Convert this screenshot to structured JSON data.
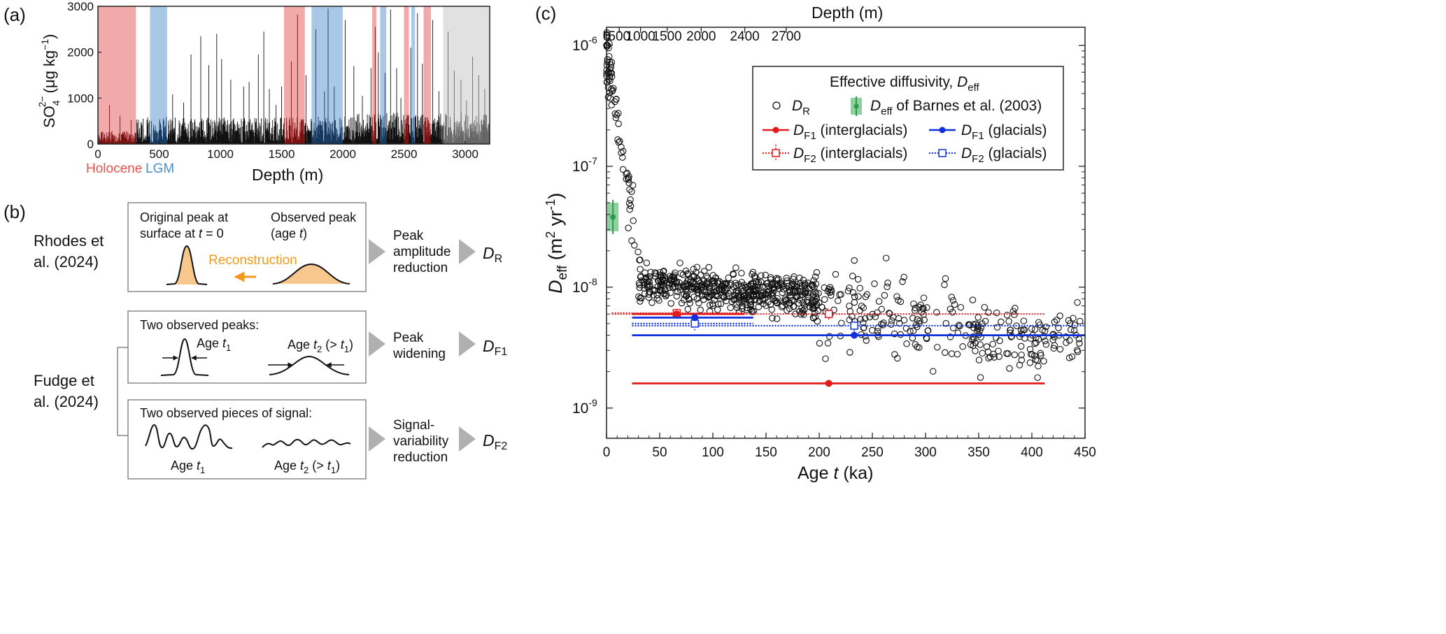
{
  "panel_a": {
    "label": "(a)",
    "chart_data": {
      "type": "area",
      "xlabel": "Depth (m)",
      "ylabel_main": "SO",
      "ylabel_sub": "4",
      "ylabel_sup": "2−",
      "ylabel_unit": "(μg kg",
      "ylabel_unit_sup": "−1",
      "ylabel_close": ")",
      "xlim": [
        0,
        3200
      ],
      "ylim": [
        0,
        3000
      ],
      "x_ticks": [
        0,
        500,
        1000,
        1500,
        2000,
        2500,
        3000
      ],
      "y_ticks": [
        0,
        1000,
        2000,
        3000
      ],
      "bands": [
        {
          "start": 0,
          "end": 310,
          "kind": "interglacial"
        },
        {
          "start": 425,
          "end": 565,
          "kind": "glacial"
        },
        {
          "start": 1520,
          "end": 1690,
          "kind": "interglacial"
        },
        {
          "start": 1745,
          "end": 2000,
          "kind": "glacial"
        },
        {
          "start": 2240,
          "end": 2275,
          "kind": "interglacial"
        },
        {
          "start": 2305,
          "end": 2355,
          "kind": "glacial"
        },
        {
          "start": 2500,
          "end": 2540,
          "kind": "interglacial"
        },
        {
          "start": 2560,
          "end": 2590,
          "kind": "glacial"
        },
        {
          "start": 2660,
          "end": 2720,
          "kind": "interglacial"
        },
        {
          "start": 2820,
          "end": 3200,
          "kind": "unresolved"
        }
      ],
      "band_labels": [
        {
          "text": "Holocene",
          "color": "#e8524f"
        },
        {
          "text": "LGM",
          "color": "#4a8fcf"
        }
      ],
      "peaks": [
        [
          95,
          850
        ],
        [
          180,
          620
        ],
        [
          270,
          520
        ],
        [
          610,
          1080
        ],
        [
          700,
          900
        ],
        [
          760,
          1950
        ],
        [
          840,
          2350
        ],
        [
          905,
          1720
        ],
        [
          970,
          2400
        ],
        [
          1010,
          1850
        ],
        [
          1085,
          1400
        ],
        [
          1190,
          1250
        ],
        [
          1235,
          1350
        ],
        [
          1310,
          1950
        ],
        [
          1355,
          2450
        ],
        [
          1400,
          1200
        ],
        [
          1455,
          850
        ],
        [
          1500,
          1250
        ],
        [
          1580,
          1800
        ],
        [
          1630,
          2820
        ],
        [
          1700,
          1500
        ],
        [
          1780,
          2500
        ],
        [
          1850,
          1150
        ],
        [
          1880,
          2950
        ],
        [
          1930,
          1250
        ],
        [
          2020,
          2700
        ],
        [
          2090,
          1700
        ],
        [
          2160,
          1050
        ],
        [
          2230,
          1650
        ],
        [
          2265,
          2550
        ],
        [
          2290,
          2000
        ],
        [
          2345,
          1550
        ],
        [
          2390,
          2930
        ],
        [
          2440,
          1650
        ],
        [
          2475,
          1000
        ],
        [
          2555,
          2100
        ],
        [
          2610,
          2850
        ],
        [
          2650,
          1750
        ],
        [
          2735,
          2700
        ],
        [
          2785,
          1150
        ],
        [
          2860,
          2450
        ],
        [
          2910,
          1600
        ],
        [
          2965,
          1400
        ],
        [
          3010,
          950
        ],
        [
          3060,
          1900
        ],
        [
          3110,
          1500
        ],
        [
          3160,
          1200
        ]
      ],
      "colors": {
        "interglacial": "#f2a9aa",
        "glacial": "#a9c8e7",
        "unresolved": "#e1e1e1"
      }
    }
  },
  "panel_b": {
    "label": "(b)",
    "rhodes": {
      "ref_line1": "Rhodes et",
      "ref_line2": "al. (2024)",
      "orig_line1": "Original peak at",
      "orig_line2_a": "surface at ",
      "orig_line2_t": "t",
      "orig_line2_b": " = 0",
      "obs_line1": "Observed peak",
      "obs_line2_a": "(age ",
      "obs_line2_t": "t",
      "obs_line2_b": ")",
      "reconstruction": "Reconstruction",
      "reconstruction_color": "#f29a1d",
      "result_line1": "Peak",
      "result_line2": "amplitude",
      "result_line3": "reduction",
      "result_symbol": "D",
      "result_sub": "R"
    },
    "fudge": {
      "ref_line1": "Fudge et",
      "ref_line2": "al. (2024)",
      "box1_title": "Two observed peaks:",
      "age1": "Age ",
      "age1_t": "t",
      "age1_sub": "1",
      "age2": "Age ",
      "age2_t": "t",
      "age2_sub": "2",
      "age2_tail": " (> ",
      "age2_t2": "t",
      "age2_sub2": "1",
      "age2_close": ")",
      "box1_result_line1": "Peak",
      "box1_result_line2": "widening",
      "box1_symbol": "D",
      "box1_sub": "F1",
      "box2_title": "Two observed pieces of signal:",
      "box2_result_line1": "Signal-",
      "box2_result_line2": "variability",
      "box2_result_line3": "reduction",
      "box2_symbol": "D",
      "box2_sub": "F2"
    }
  },
  "panel_c": {
    "label": "(c)",
    "chart_data": {
      "type": "scatter",
      "xlabel_a": "Age ",
      "xlabel_t": "t",
      "xlabel_b": " (ka)",
      "ylabel_d": "D",
      "ylabel_sub": "eff",
      "ylabel_unit": " (m",
      "ylabel_sup1": "2",
      "ylabel_unit2": " yr",
      "ylabel_sup2": "-1",
      "ylabel_close": ")",
      "top_axis_label": "Depth (m)",
      "xlim": [
        0,
        450
      ],
      "ylim_log10": [
        -9.25,
        -5.85
      ],
      "log_scale_y": true,
      "x_ticks": [
        0,
        50,
        100,
        150,
        200,
        250,
        300,
        350,
        400,
        450
      ],
      "y_ticks": [
        {
          "exp": -6,
          "base": "10",
          "sup": "-6"
        },
        {
          "exp": -7,
          "base": "10",
          "sup": "-7"
        },
        {
          "exp": -8,
          "base": "10",
          "sup": "-8"
        },
        {
          "exp": -9,
          "base": "10",
          "sup": "-9"
        }
      ],
      "top_ticks": [
        {
          "label": "0",
          "age": 0
        },
        {
          "label": "500",
          "age": 12
        },
        {
          "label": "1000",
          "age": 32
        },
        {
          "label": "1500",
          "age": 57
        },
        {
          "label": "2000",
          "age": 89
        },
        {
          "label": "2400",
          "age": 130
        },
        {
          "label": "2700",
          "age": 169
        }
      ],
      "legend": {
        "title_a": "Effective diffusivity, ",
        "title_d": "D",
        "title_sub": "eff",
        "dr_d": "D",
        "dr_sub": "R",
        "barnes_d": "D",
        "barnes_sub": "eff",
        "barnes_tail": " of Barnes et al. (2003)",
        "f1i_d": "D",
        "f1i_sub": "F1",
        "f1i_tail": " (interglacials)",
        "f1g_d": "D",
        "f1g_sub": "F1",
        "f1g_tail": " (glacials)",
        "f2i_d": "D",
        "f2i_sub": "F2",
        "f2i_tail": " (interglacials)",
        "f2g_d": "D",
        "f2g_sub": "F2",
        "f2g_tail": " (glacials)"
      },
      "barnes": {
        "x": 6,
        "y": 3.8e-08,
        "ylo": 2.9e-08,
        "yhi": 5e-08
      },
      "DF1_interglacial": [
        {
          "xmin": 24,
          "xmax": 130,
          "y": 6e-09,
          "marker_x": 66
        },
        {
          "xmin": 24,
          "xmax": 412,
          "y": 1.6e-09,
          "marker_x": 209
        }
      ],
      "DF1_glacial": [
        {
          "xmin": 24,
          "xmax": 138,
          "y": 5.6e-09,
          "marker_x": 83
        },
        {
          "xmin": 24,
          "xmax": 450,
          "y": 4e-09,
          "marker_x": 233
        }
      ],
      "DF2_interglacial": [
        {
          "xmin": 5,
          "xmax": 412,
          "y": 6e-09,
          "marker_x": 209,
          "ylo": 5.4e-09,
          "yhi": 6.7e-09
        },
        {
          "xmin": 5,
          "xmax": 130,
          "y": 6.1e-09,
          "marker_x": 66,
          "ylo": 5.5e-09,
          "yhi": 6.8e-09
        }
      ],
      "DF2_glacial": [
        {
          "xmin": 24,
          "xmax": 450,
          "y": 4.8e-09,
          "marker_x": 233,
          "ylo": 4.3e-09,
          "yhi": 5.4e-09
        },
        {
          "xmin": 24,
          "xmax": 138,
          "y": 5e-09,
          "marker_x": 83,
          "ylo": 4.4e-09,
          "yhi": 5.6e-09
        }
      ],
      "colors": {
        "red": "#e31a1c",
        "blue": "#1030e0",
        "green": "#2e9a4e",
        "green_fill": "#8fd09f"
      }
    }
  }
}
